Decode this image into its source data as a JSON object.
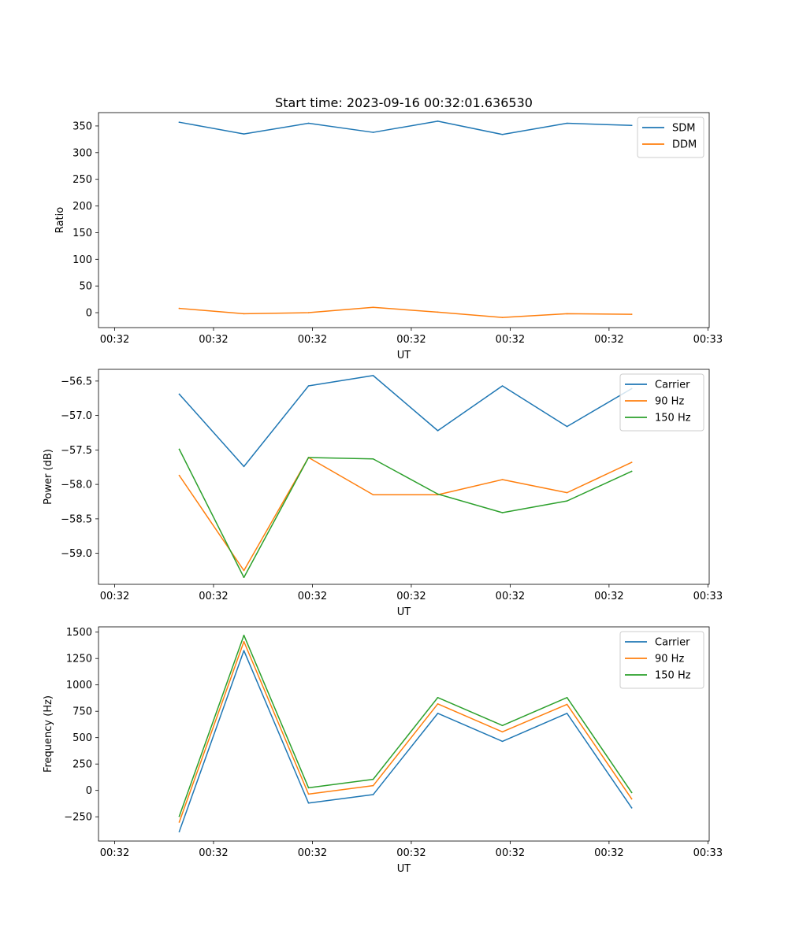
{
  "chart_data": [
    {
      "type": "line",
      "title": "Start time: 2023-09-16 00:32:01.636530",
      "xlabel": "UT",
      "ylabel": "Ratio",
      "x": [
        1,
        2,
        3,
        4,
        5,
        6,
        7,
        8
      ],
      "xlim": [
        -0.25,
        9.2
      ],
      "xticks": [
        0,
        1.53,
        3.06,
        4.59,
        6.12,
        7.65,
        9.18
      ],
      "xtick_labels": [
        "00:32",
        "00:32",
        "00:32",
        "00:32",
        "00:32",
        "00:32",
        "00:33"
      ],
      "ylim": [
        -28,
        375
      ],
      "yticks": [
        0,
        50,
        100,
        150,
        200,
        250,
        300,
        350
      ],
      "ytick_labels": [
        "0",
        "50",
        "100",
        "150",
        "200",
        "250",
        "300",
        "350"
      ],
      "legend": "top-right",
      "series": [
        {
          "name": "SDM",
          "color": "#1f77b4",
          "values": [
            357,
            335,
            355,
            338,
            359,
            334,
            355,
            351
          ]
        },
        {
          "name": "DDM",
          "color": "#ff7f0e",
          "values": [
            8,
            -2,
            0,
            10,
            1,
            -9,
            -2,
            -3
          ]
        }
      ]
    },
    {
      "type": "line",
      "title": "",
      "xlabel": "UT",
      "ylabel": "Power (dB)",
      "x": [
        1,
        2,
        3,
        4,
        5,
        6,
        7,
        8
      ],
      "xlim": [
        -0.25,
        9.2
      ],
      "xticks": [
        0,
        1.53,
        3.06,
        4.59,
        6.12,
        7.65,
        9.18
      ],
      "xtick_labels": [
        "00:32",
        "00:32",
        "00:32",
        "00:32",
        "00:32",
        "00:32",
        "00:33"
      ],
      "ylim": [
        -59.45,
        -56.33
      ],
      "yticks": [
        -59.0,
        -58.5,
        -58.0,
        -57.5,
        -57.0,
        -56.5
      ],
      "ytick_labels": [
        "−59.0",
        "−58.5",
        "−58.0",
        "−57.5",
        "−57.0",
        "−56.5"
      ],
      "legend": "top-right",
      "series": [
        {
          "name": "Carrier",
          "color": "#1f77b4",
          "values": [
            -56.69,
            -57.74,
            -56.57,
            -56.42,
            -57.22,
            -56.57,
            -57.16,
            -56.61
          ]
        },
        {
          "name": "90 Hz",
          "color": "#ff7f0e",
          "values": [
            -57.87,
            -59.25,
            -57.61,
            -58.15,
            -58.15,
            -57.93,
            -58.12,
            -57.68
          ]
        },
        {
          "name": "150 Hz",
          "color": "#2ca02c",
          "values": [
            -57.49,
            -59.35,
            -57.61,
            -57.63,
            -58.14,
            -58.41,
            -58.24,
            -57.81
          ]
        }
      ]
    },
    {
      "type": "line",
      "title": "",
      "xlabel": "UT",
      "ylabel": "Frequency (Hz)",
      "x": [
        1,
        2,
        3,
        4,
        5,
        6,
        7,
        8
      ],
      "xlim": [
        -0.25,
        9.2
      ],
      "xticks": [
        0,
        1.53,
        3.06,
        4.59,
        6.12,
        7.65,
        9.18
      ],
      "xtick_labels": [
        "00:32",
        "00:32",
        "00:32",
        "00:32",
        "00:32",
        "00:32",
        "00:33"
      ],
      "ylim": [
        -480,
        1550
      ],
      "yticks": [
        -250,
        0,
        250,
        500,
        750,
        1000,
        1250,
        1500
      ],
      "ytick_labels": [
        "−250",
        "0",
        "250",
        "500",
        "750",
        "1000",
        "1250",
        "1500"
      ],
      "legend": "top-right",
      "series": [
        {
          "name": "Carrier",
          "color": "#1f77b4",
          "values": [
            -390,
            1325,
            -120,
            -40,
            730,
            465,
            730,
            -165
          ]
        },
        {
          "name": "90 Hz",
          "color": "#ff7f0e",
          "values": [
            -300,
            1410,
            -35,
            45,
            820,
            555,
            815,
            -80
          ]
        },
        {
          "name": "150 Hz",
          "color": "#2ca02c",
          "values": [
            -245,
            1470,
            25,
            105,
            880,
            615,
            880,
            -20
          ]
        }
      ]
    }
  ]
}
